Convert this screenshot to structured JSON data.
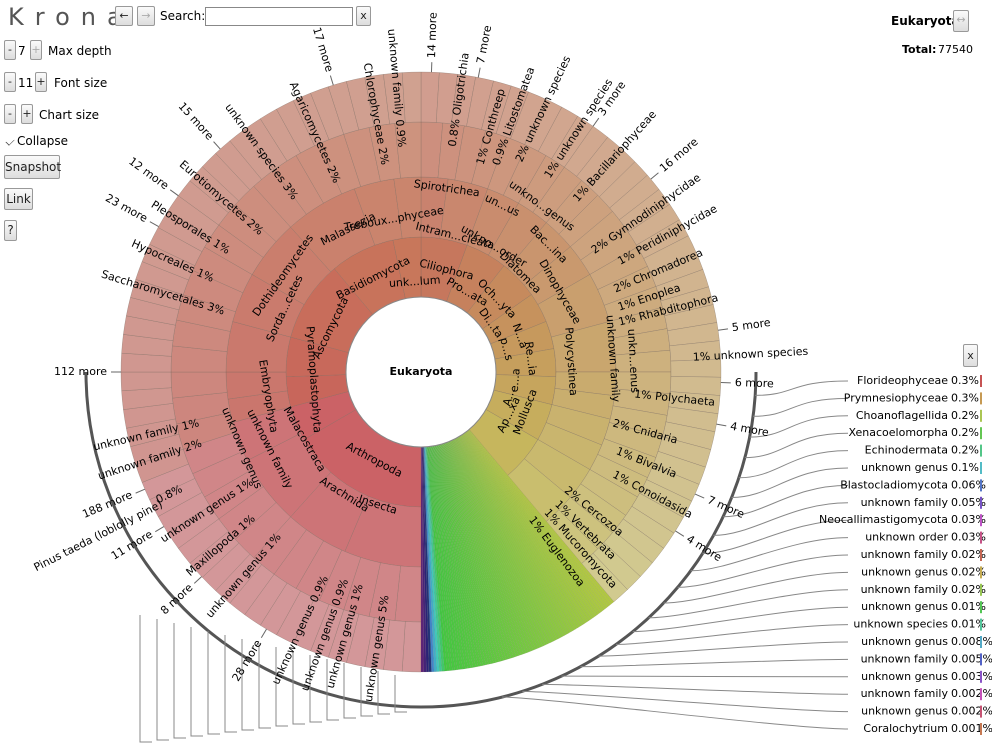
{
  "toolbar": {
    "logo": "Krona",
    "back": "←",
    "forward": "→",
    "search_label": "Search:",
    "search_clear": "x",
    "max_depth": {
      "minus": "-",
      "value": "7",
      "plus": "+",
      "label": "Max depth"
    },
    "font_size": {
      "minus": "-",
      "value": "11",
      "plus": "+",
      "label": "Font size"
    },
    "chart_size": {
      "minus": "-",
      "plus": "+",
      "label": "Chart size"
    },
    "collapse": "Collapse",
    "snapshot": "Snapshot",
    "link": "Link",
    "help": "?"
  },
  "details": {
    "name": "Eukaryota",
    "swap": "↔",
    "total_label": "Total:",
    "total": "77540"
  },
  "chart": {
    "root": "Eukaryota",
    "labels": [
      "Arthropoda",
      "Insecta",
      "Arachnida",
      "Malacostraca",
      "Embryophyta",
      "Pyramoplastophyta",
      "Ascomycota",
      "Sorda...cetes",
      "Dothideomycetes",
      "Basidiomycota",
      "Malassezia",
      "unk...lum",
      "Treboux...phyceae",
      "Ciliophora",
      "Intram...cleata",
      "Spirotrichea",
      "Pro...ata",
      "Och...yta",
      "Di...ta",
      "unkno...order",
      "Diatomea",
      "un...us",
      "unkno...genus",
      "Bac...ina",
      "Dinophyceae",
      "N...a",
      "Re...ia",
      "p...s",
      "e...a",
      "A...",
      "Ap...xa",
      "Polycystinea",
      "Mollusca",
      "unknown family",
      "unkn...enus",
      "unknown genus",
      "unknown family",
      "2%   Cnidaria",
      "1%   Bivalvia",
      "1%   Conoidasida",
      "2%   Cercozoa",
      "1%   Vertebrata",
      "1%   Mucoromycota",
      "1%   Euglenozoa",
      "1%   Polychaeta",
      "1%   unknown species",
      "1%   Rhabditophora",
      "1%   Enoplea",
      "2%   Chromadorea",
      "1%   Peridiniphycidae",
      "2%   Gymnodiniphycidae",
      "1%   Bacillariophyceae",
      "1%   unknown species",
      "2%   unknown species",
      "0.9%   Litostomatea",
      "1%   Conthreep",
      "0.8%   Oligotrichia",
      "unknown family   0.9%",
      "Chlorophyceae   2%",
      "Agaricomycetes   2%",
      "unknown species   3%",
      "Eurotiomycetes   2%",
      "Pleosporales   1%",
      "Hypocreales   1%",
      "Saccharomycetales   3%",
      "unknown family   1%",
      "unknown family   2%",
      "0.8%",
      "unknown genus   1%",
      "Maxillopoda   1%",
      "unknown genus   1%",
      "unknown genus   0.9%",
      "unknown genus   0.9%",
      "unknown genus   1%",
      "unknown genus   5%",
      "Pinus taeda (loblolly pine)"
    ],
    "more": [
      "14 more",
      "7 more",
      "3 more",
      "16 more",
      "5 more",
      "6 more",
      "4 more",
      "7 more",
      "4 more",
      "28 more",
      "8 more",
      "11 more",
      "188 more",
      "112 more",
      "23 more",
      "12 more",
      "15 more",
      "17 more"
    ]
  },
  "list": {
    "close": "x",
    "items": [
      {
        "name": "Florideophyceae",
        "percent": "0.3%"
      },
      {
        "name": "Prymnesiophyceae",
        "percent": "0.3%"
      },
      {
        "name": "Choanoflagellida",
        "percent": "0.2%"
      },
      {
        "name": "Xenacoelomorpha",
        "percent": "0.2%"
      },
      {
        "name": "Echinodermata",
        "percent": "0.2%"
      },
      {
        "name": "unknown genus",
        "percent": "0.1%"
      },
      {
        "name": "Blastocladiomycota",
        "percent": "0.06%"
      },
      {
        "name": "unknown family",
        "percent": "0.05%"
      },
      {
        "name": "Neocallimastigomycota",
        "percent": "0.03%"
      },
      {
        "name": "unknown order",
        "percent": "0.03%"
      },
      {
        "name": "unknown family",
        "percent": "0.02%"
      },
      {
        "name": "unknown genus",
        "percent": "0.02%"
      },
      {
        "name": "unknown family",
        "percent": "0.02%"
      },
      {
        "name": "unknown genus",
        "percent": "0.01%"
      },
      {
        "name": "unknown species",
        "percent": "0.01%"
      },
      {
        "name": "unknown genus",
        "percent": "0.008%"
      },
      {
        "name": "unknown family",
        "percent": "0.005%"
      },
      {
        "name": "unknown genus",
        "percent": "0.003%"
      },
      {
        "name": "unknown family",
        "percent": "0.002%"
      },
      {
        "name": "unknown genus",
        "percent": "0.002%"
      },
      {
        "name": "Coralochytrium",
        "percent": "0.001%"
      }
    ]
  }
}
